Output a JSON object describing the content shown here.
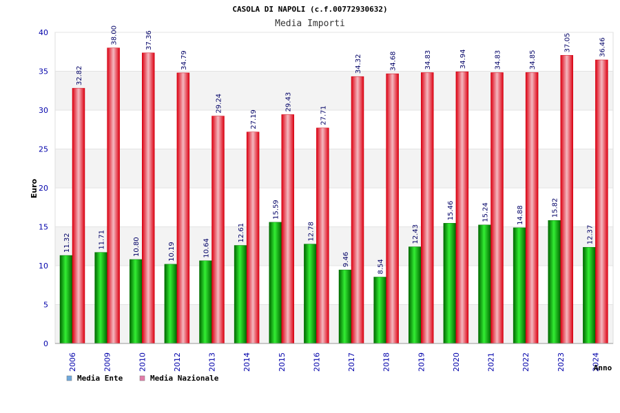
{
  "chart_data": {
    "type": "bar",
    "title": "CASOLA DI NAPOLI (c.f.00772930632)",
    "subtitle": "Media Importi",
    "ylabel": "Euro",
    "xlabel": "Anno",
    "ylim": [
      0,
      40
    ],
    "yticks": [
      0,
      5,
      10,
      15,
      20,
      25,
      30,
      35,
      40
    ],
    "grid": true,
    "legend_position": "bottom-left",
    "categories": [
      "2006",
      "2009",
      "2010",
      "2012",
      "2013",
      "2014",
      "2015",
      "2016",
      "2017",
      "2018",
      "2019",
      "2020",
      "2021",
      "2022",
      "2023",
      "2024"
    ],
    "series": [
      {
        "name": "Media Ente",
        "legend_color": "#6fa8dc",
        "bar_color": "#00c000",
        "values": [
          11.32,
          11.71,
          10.8,
          10.19,
          10.64,
          12.61,
          15.59,
          12.78,
          9.46,
          8.54,
          12.43,
          15.46,
          15.24,
          14.88,
          15.82,
          12.37
        ],
        "labels": [
          "11.32",
          "11.71",
          "10.80",
          "10.19",
          "10.64",
          "12.61",
          "15.59",
          "12.78",
          "9.46",
          "8.54",
          "12.43",
          "15.46",
          "15.24",
          "14.88",
          "15.82",
          "12.37"
        ]
      },
      {
        "name": "Media Nazionale",
        "legend_color": "#e37ca8",
        "bar_color": "#ee1122",
        "values": [
          32.82,
          38.0,
          37.36,
          34.79,
          29.24,
          27.19,
          29.43,
          27.71,
          34.32,
          34.68,
          34.83,
          34.94,
          34.83,
          34.85,
          37.05,
          36.46
        ],
        "labels": [
          "32.82",
          "38.00",
          "37.36",
          "34.79",
          "29.24",
          "27.19",
          "29.43",
          "27.71",
          "34.32",
          "34.68",
          "34.83",
          "34.94",
          "34.83",
          "34.85",
          "37.05",
          "36.46"
        ]
      }
    ]
  }
}
